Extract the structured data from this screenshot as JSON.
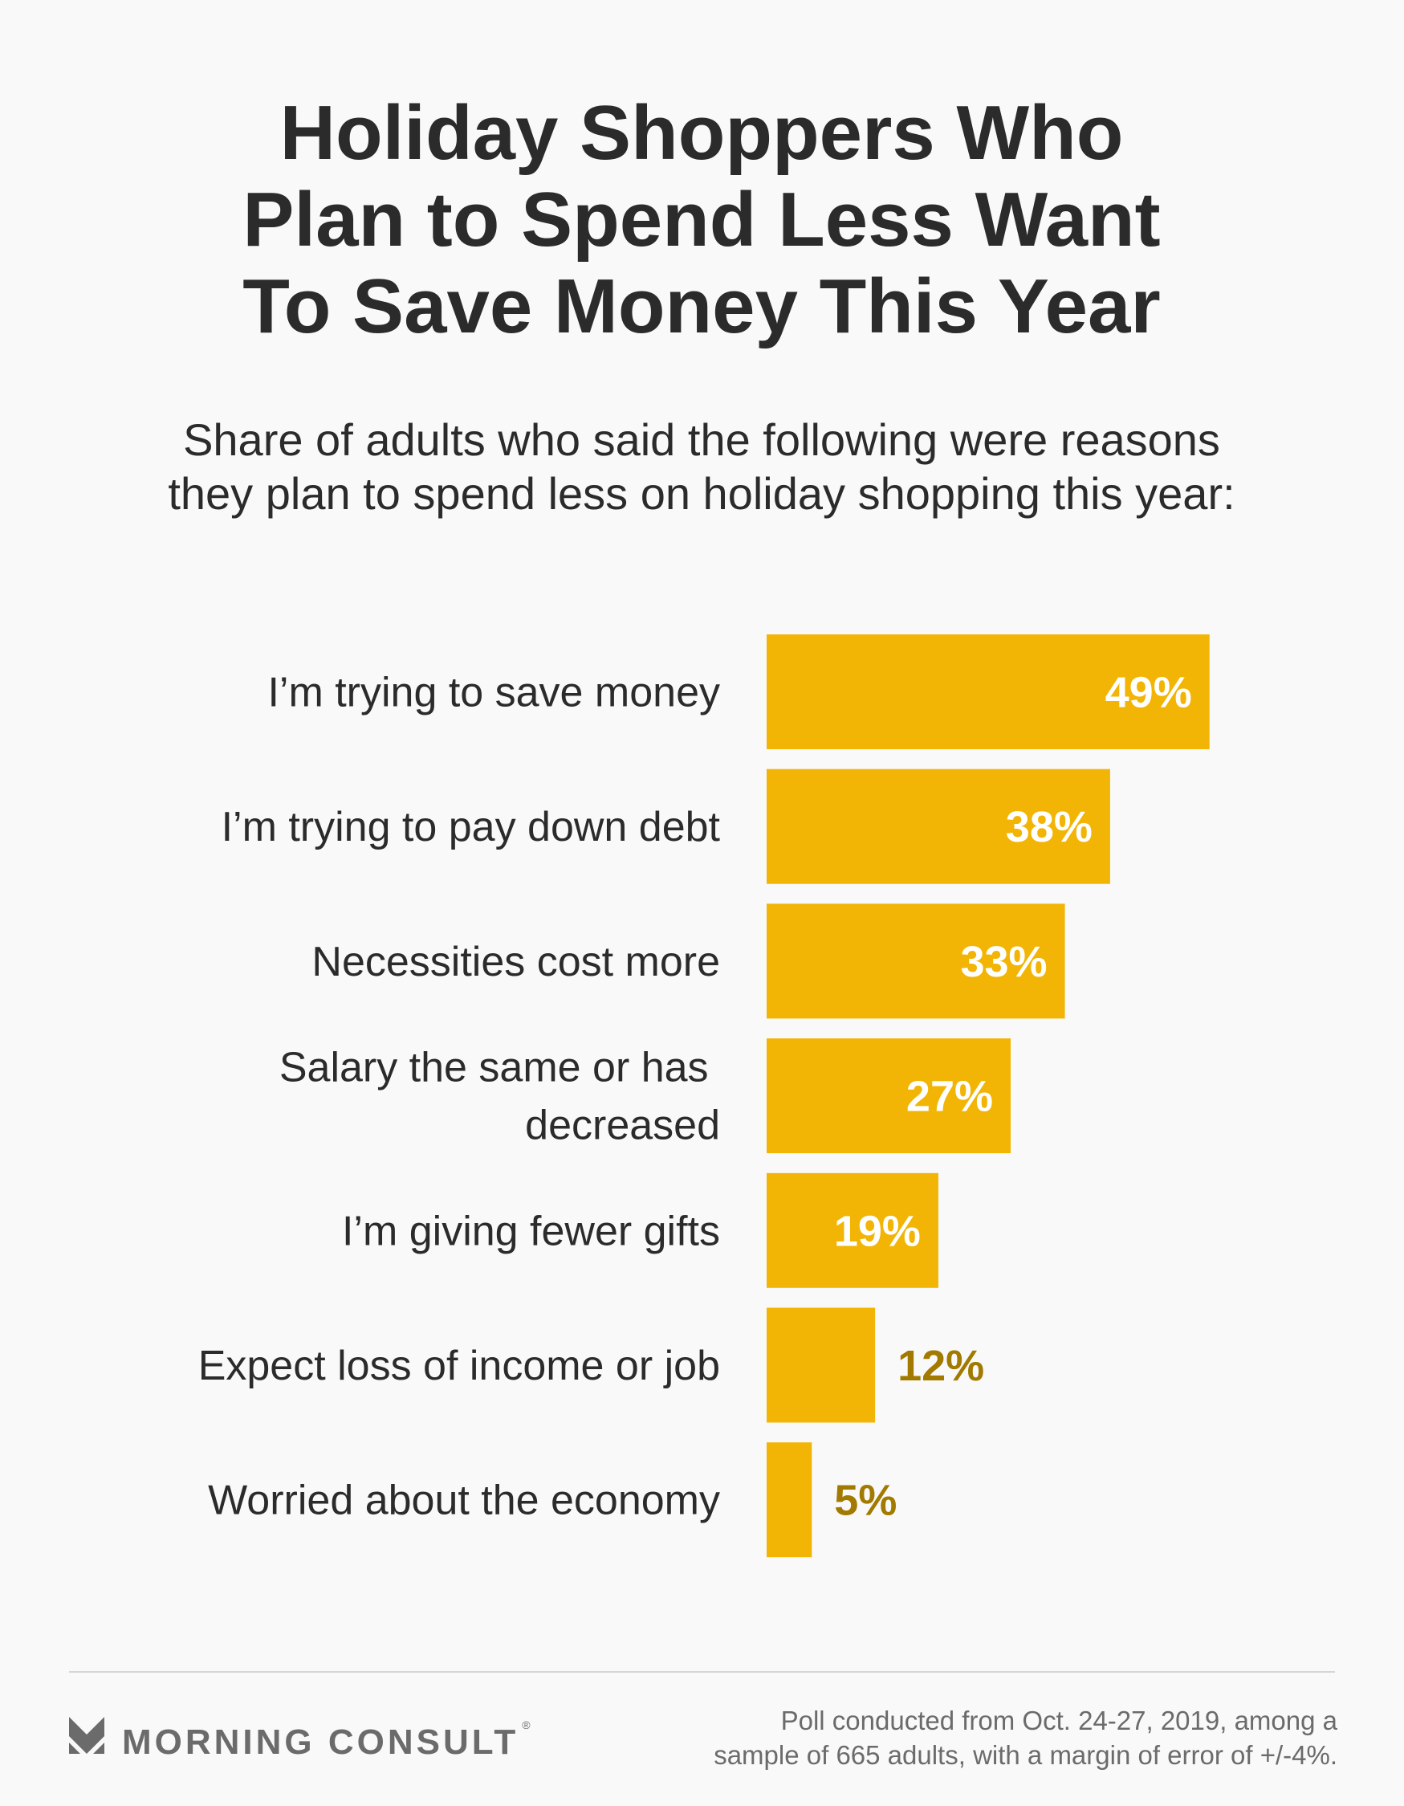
{
  "chart_data": {
    "type": "bar",
    "orientation": "horizontal",
    "title": [
      "Holiday Shoppers Who",
      "Plan to Spend Less Want",
      "To Save Money This Year"
    ],
    "subtitle": [
      "Share of adults who said the following were reasons",
      "they plan to spend less on holiday shopping this year:"
    ],
    "categories": [
      "I’m trying to save money",
      "I’m trying to pay down debt",
      "Necessities cost more",
      "Salary the same or has decreased",
      "I’m giving fewer gifts",
      "Expect loss of income or job",
      "Worried about the economy"
    ],
    "values": [
      49,
      38,
      33,
      27,
      19,
      12,
      5
    ],
    "value_labels": [
      "49%",
      "38%",
      "33%",
      "27%",
      "19%",
      "12%",
      "5%"
    ],
    "color": "#f2b505",
    "note": [
      "Poll conducted from Oct. 24-27, 2019, among a",
      "sample of 665 adults, with a margin of error of +/-4%."
    ],
    "logo": "MORNING CONSULT",
    "logo_mark": "®"
  }
}
